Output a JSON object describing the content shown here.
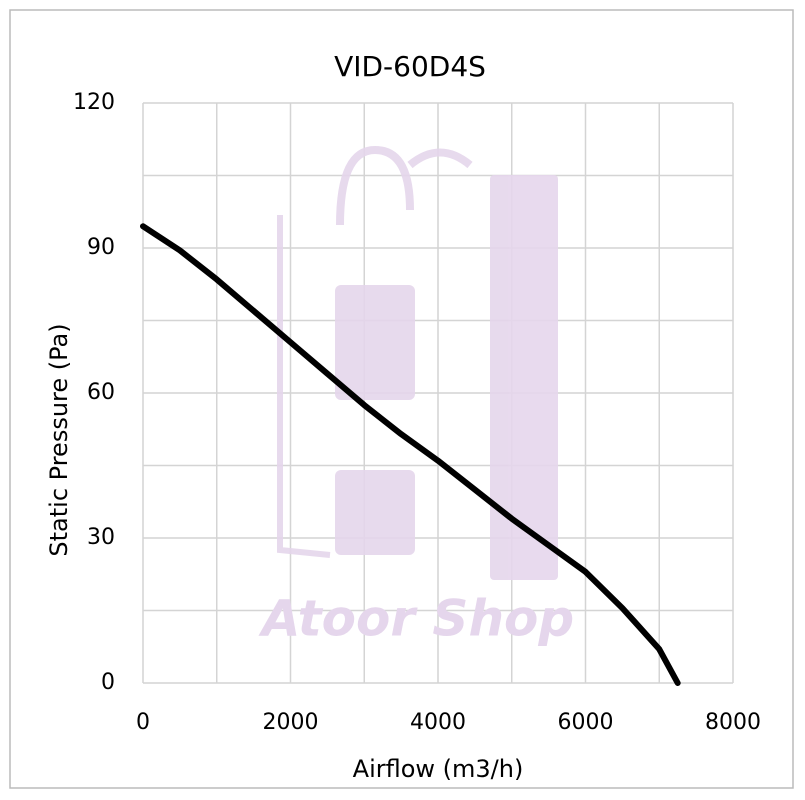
{
  "chart_data": {
    "type": "line",
    "title": "VID-60D4S",
    "x_label": "Airflow (m3/h)",
    "y_label": "Static Pressure (Pa)",
    "watermark": "Atoor Shop",
    "x": [
      0,
      500,
      1000,
      1500,
      2000,
      2500,
      3000,
      3500,
      4000,
      4500,
      5000,
      5500,
      6000,
      6500,
      7000,
      7250
    ],
    "series": [
      {
        "name": "VID-60D4S",
        "color": "#000000",
        "values": [
          94.5,
          89.5,
          83.5,
          77,
          70.5,
          64,
          57.5,
          51.5,
          46,
          40,
          34,
          28.5,
          23,
          15.5,
          7,
          0
        ]
      }
    ],
    "xlim": [
      0,
      8000
    ],
    "xticks": [
      0,
      2000,
      4000,
      6000,
      8000
    ],
    "ylim": [
      0,
      120
    ],
    "yticks": [
      0,
      30,
      60,
      90,
      120
    ],
    "x_minor_ticks": [
      1000,
      3000,
      5000,
      7000
    ],
    "y_minor_ticks": [
      15,
      45,
      75,
      105
    ],
    "grid": true
  }
}
